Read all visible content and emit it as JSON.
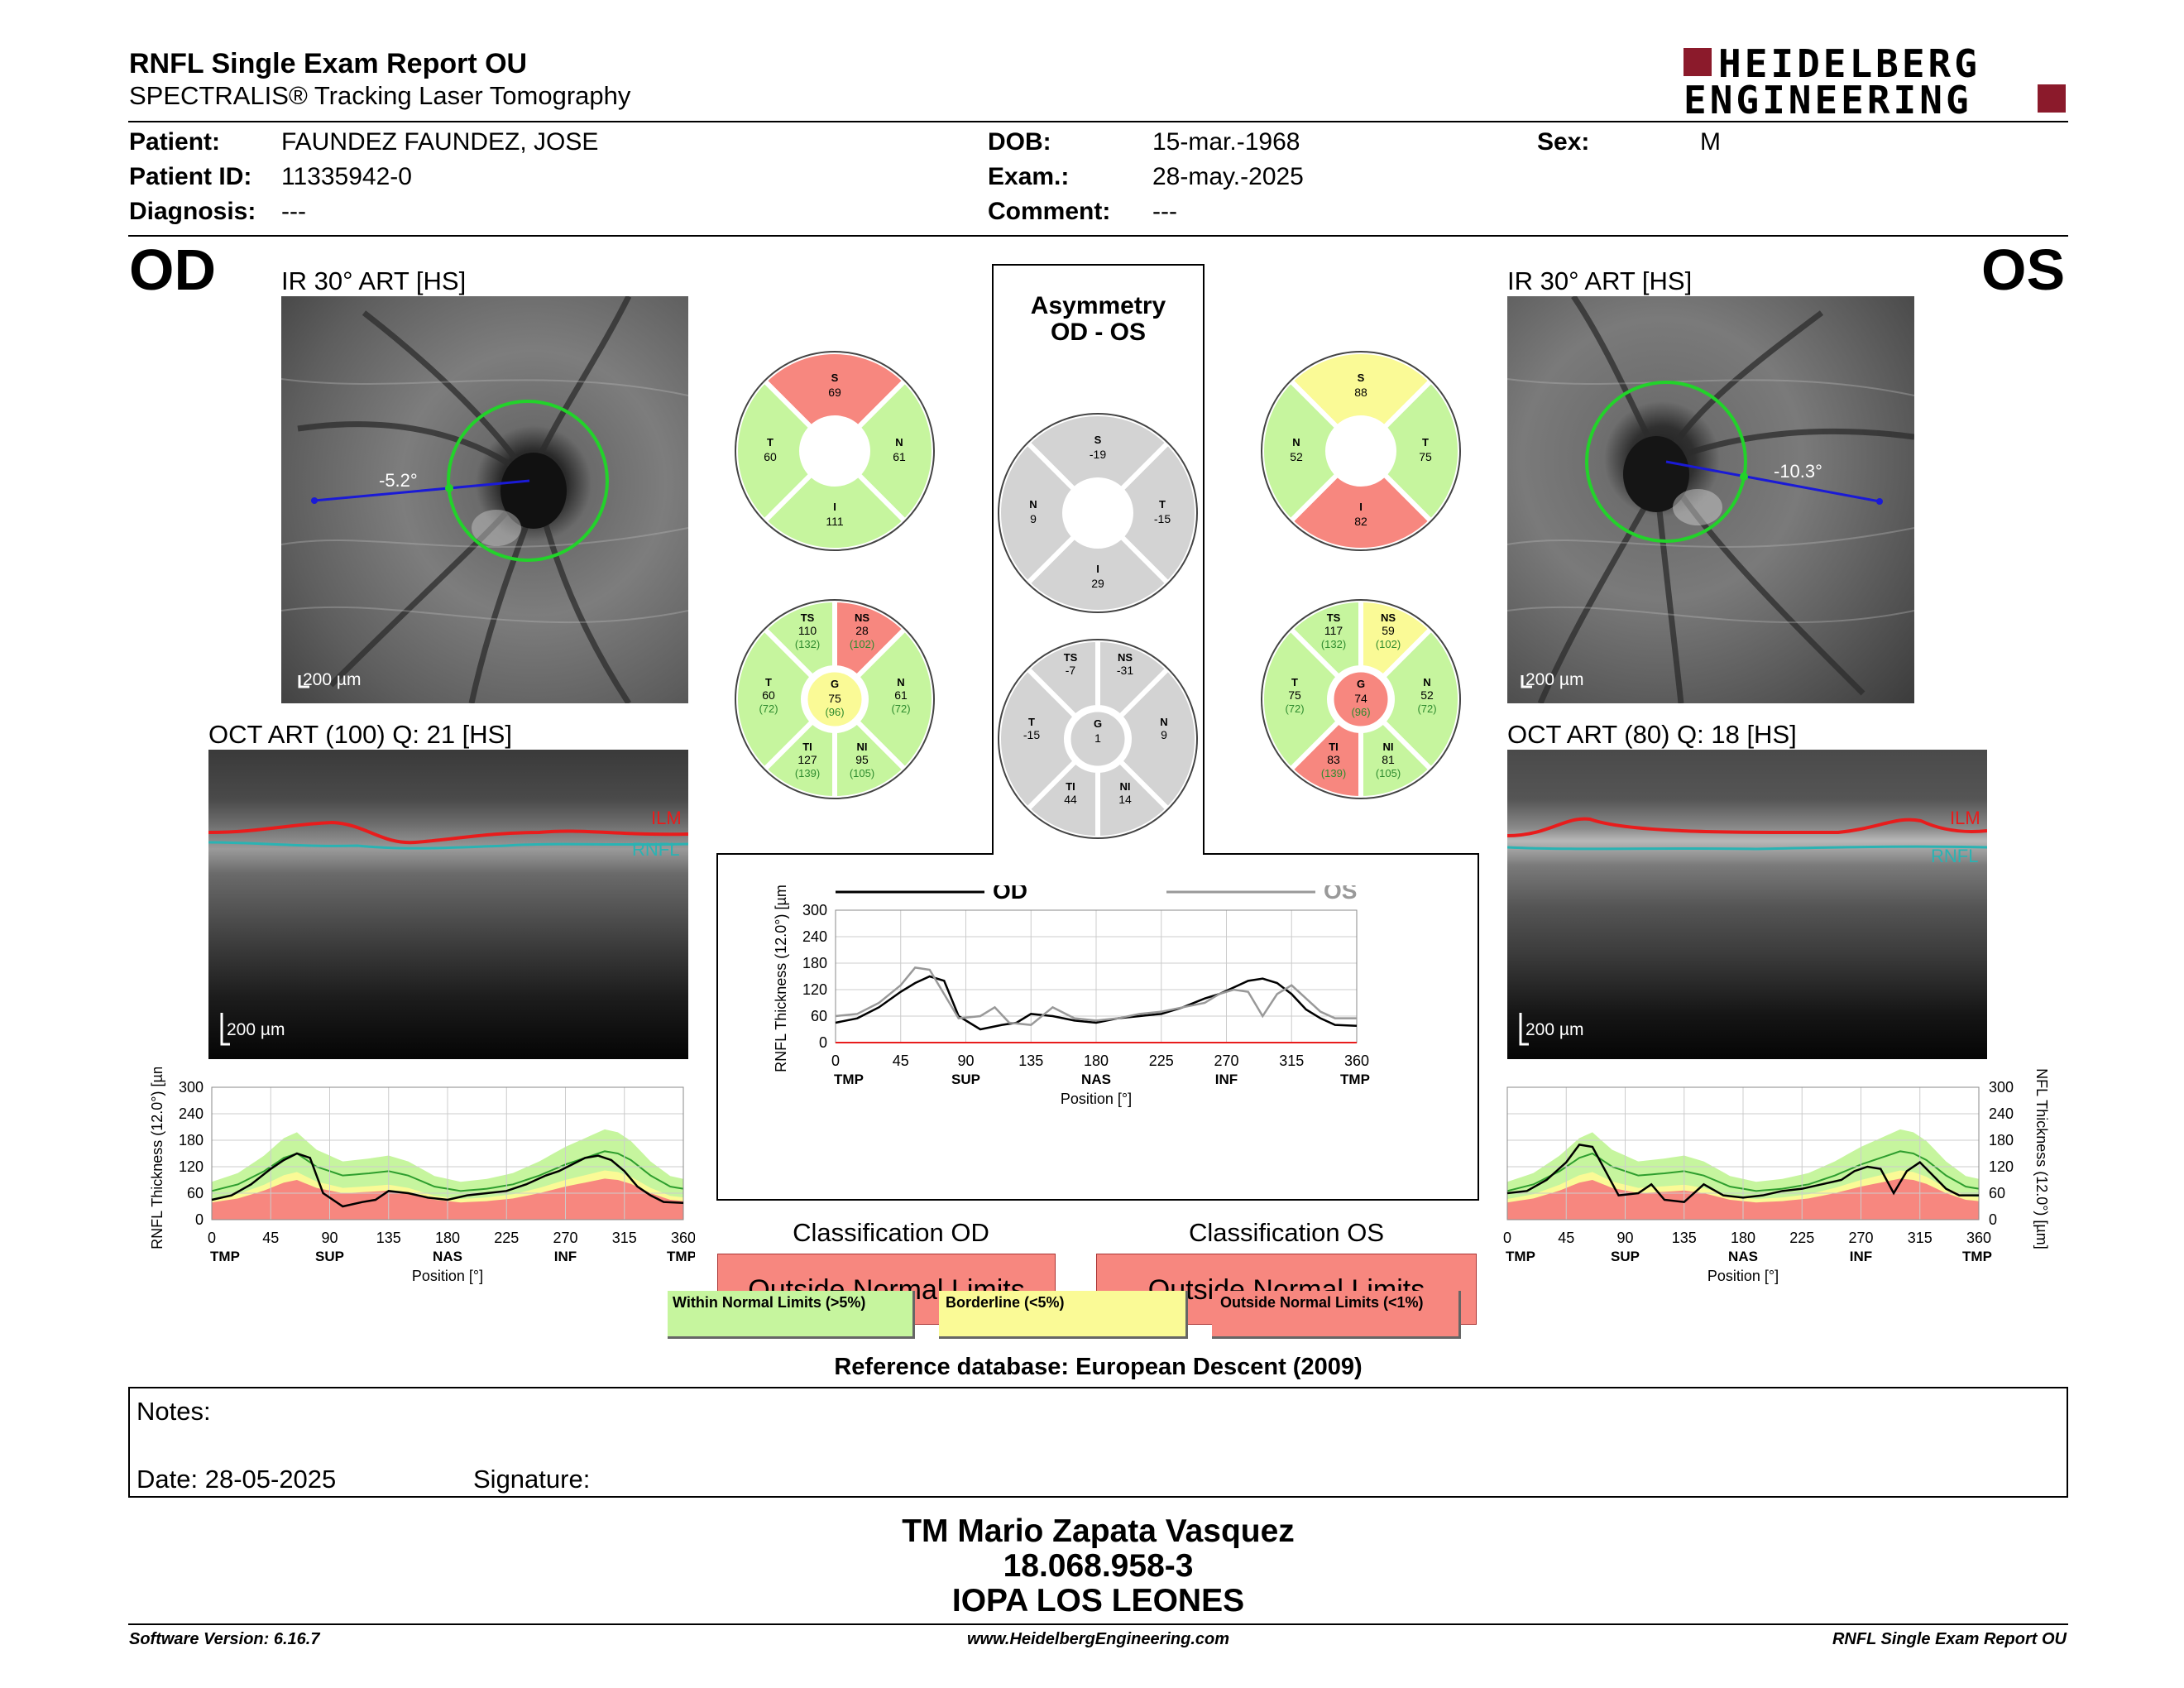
{
  "header": {
    "title": "RNFL Single Exam Report OU",
    "subtitle": "SPECTRALIS® Tracking Laser Tomography",
    "brand_line1": "HEIDELBERG",
    "brand_line2": "ENGINEERING",
    "brand_color": "#8b1a2b"
  },
  "patient": {
    "patient_label": "Patient:",
    "patient_value": "FAUNDEZ FAUNDEZ, JOSE",
    "id_label": "Patient ID:",
    "id_value": "11335942-0",
    "diagnosis_label": "Diagnosis:",
    "diagnosis_value": "---",
    "dob_label": "DOB:",
    "dob_value": "15-mar.-1968",
    "exam_label": "Exam.:",
    "exam_value": "28-may.-2025",
    "comment_label": "Comment:",
    "comment_value": "---",
    "sex_label": "Sex:",
    "sex_value": "M"
  },
  "od": {
    "eye": "OD",
    "ir_label": "IR 30° ART [HS]",
    "angle": "-5.2°",
    "ir_scale": "200 µm",
    "oct_label": "OCT ART (100) Q: 21 [HS]",
    "oct_scale": "200 µm",
    "ilm": "ILM",
    "rnfl": "RNFL",
    "classification_title": "Classification OD",
    "classification": "Outside Normal Limits"
  },
  "os": {
    "eye": "OS",
    "ir_label": "IR 30° ART [HS]",
    "angle": "-10.3°",
    "ir_scale": "200 µm",
    "oct_label": "OCT ART (80) Q: 18 [HS]",
    "oct_scale": "200 µm",
    "ilm": "ILM",
    "rnfl": "RNFL",
    "classification_title": "Classification OS",
    "classification": "Outside Normal Limits"
  },
  "asymmetry": {
    "title1": "Asymmetry",
    "title2": "OD - OS"
  },
  "colors": {
    "green": "#c6f59e",
    "yellow": "#fafa96",
    "red": "#f7877f",
    "grey": "#d3d3d3"
  },
  "sector_charts": [
    {
      "id": "od-4",
      "sectors": [
        {
          "label": "S",
          "value": "69",
          "color": "red"
        },
        {
          "label": "N",
          "value": "61",
          "color": "green"
        },
        {
          "label": "I",
          "value": "111",
          "color": "green"
        },
        {
          "label": "T",
          "value": "60",
          "color": "green"
        }
      ]
    },
    {
      "id": "os-4",
      "sectors": [
        {
          "label": "S",
          "value": "88",
          "color": "yellow"
        },
        {
          "label": "T",
          "value": "75",
          "color": "green"
        },
        {
          "label": "I",
          "value": "82",
          "color": "red"
        },
        {
          "label": "N",
          "value": "52",
          "color": "green"
        }
      ]
    },
    {
      "id": "as-4",
      "sectors": [
        {
          "label": "S",
          "value": "-19",
          "color": "grey"
        },
        {
          "label": "T",
          "value": "-15",
          "color": "grey"
        },
        {
          "label": "I",
          "value": "29",
          "color": "grey"
        },
        {
          "label": "N",
          "value": "9",
          "color": "grey"
        }
      ]
    }
  ],
  "sector6_charts": [
    {
      "id": "od-6",
      "ts": {
        "l": "TS",
        "v": "110",
        "r": "(132)",
        "c": "green"
      },
      "ns": {
        "l": "NS",
        "v": "28",
        "r": "(102)",
        "c": "red"
      },
      "n": {
        "l": "N",
        "v": "61",
        "r": "(72)",
        "c": "green"
      },
      "ni": {
        "l": "NI",
        "v": "95",
        "r": "(105)",
        "c": "green"
      },
      "ti": {
        "l": "TI",
        "v": "127",
        "r": "(139)",
        "c": "green"
      },
      "t": {
        "l": "T",
        "v": "60",
        "r": "(72)",
        "c": "green"
      },
      "g": {
        "l": "G",
        "v": "75",
        "r": "(96)",
        "c": "yellow"
      }
    },
    {
      "id": "os-6",
      "ts": {
        "l": "TS",
        "v": "117",
        "r": "(132)",
        "c": "green"
      },
      "ns": {
        "l": "NS",
        "v": "59",
        "r": "(102)",
        "c": "yellow"
      },
      "n": {
        "l": "N",
        "v": "52",
        "r": "(72)",
        "c": "green"
      },
      "ni": {
        "l": "NI",
        "v": "81",
        "r": "(105)",
        "c": "green"
      },
      "ti": {
        "l": "TI",
        "v": "83",
        "r": "(139)",
        "c": "red"
      },
      "t": {
        "l": "T",
        "v": "75",
        "r": "(72)",
        "c": "green"
      },
      "g": {
        "l": "G",
        "v": "74",
        "r": "(96)",
        "c": "red"
      }
    },
    {
      "id": "as-6",
      "ts": {
        "l": "TS",
        "v": "-7",
        "r": "",
        "c": "grey"
      },
      "ns": {
        "l": "NS",
        "v": "-31",
        "r": "",
        "c": "grey"
      },
      "n": {
        "l": "N",
        "v": "9",
        "r": "",
        "c": "grey"
      },
      "ni": {
        "l": "NI",
        "v": "14",
        "r": "",
        "c": "grey"
      },
      "ti": {
        "l": "TI",
        "v": "44",
        "r": "",
        "c": "grey"
      },
      "t": {
        "l": "T",
        "v": "-15",
        "r": "",
        "c": "grey"
      },
      "g": {
        "l": "G",
        "v": "1",
        "r": "",
        "c": "grey"
      }
    }
  ],
  "chart_data": [
    {
      "type": "line",
      "id": "od-profile",
      "ylabel": "RNFL Thickness (12.0°) [µm]",
      "xlabel": "Position [°]",
      "xlim": [
        0,
        360
      ],
      "ylim": [
        0,
        300
      ],
      "xticks": [
        0,
        45,
        90,
        135,
        180,
        225,
        270,
        315,
        360
      ],
      "yticks": [
        0,
        60,
        120,
        180,
        240,
        300
      ],
      "region_labels": [
        {
          "x": 0,
          "t": "TMP"
        },
        {
          "x": 90,
          "t": "SUP"
        },
        {
          "x": 180,
          "t": "NAS"
        },
        {
          "x": 270,
          "t": "INF"
        },
        {
          "x": 360,
          "t": "TMP"
        }
      ],
      "series": [
        {
          "x": [
            0,
            15,
            30,
            45,
            55,
            65,
            75,
            85,
            100,
            115,
            125,
            135,
            150,
            165,
            180,
            195,
            210,
            225,
            240,
            255,
            265,
            275,
            285,
            295,
            305,
            315,
            325,
            335,
            345,
            360
          ],
          "values": [
            45,
            55,
            80,
            115,
            135,
            150,
            140,
            60,
            30,
            40,
            45,
            65,
            60,
            50,
            45,
            55,
            60,
            65,
            80,
            100,
            110,
            125,
            140,
            145,
            135,
            110,
            75,
            55,
            40,
            38
          ]
        }
      ],
      "normal_mean": {
        "x": [
          0,
          20,
          40,
          55,
          65,
          80,
          100,
          120,
          135,
          150,
          170,
          190,
          210,
          230,
          250,
          270,
          290,
          300,
          310,
          320,
          335,
          350,
          360
        ],
        "values": [
          65,
          80,
          110,
          140,
          150,
          120,
          100,
          105,
          110,
          100,
          75,
          65,
          70,
          80,
          100,
          125,
          145,
          155,
          150,
          135,
          100,
          75,
          70
        ]
      }
    },
    {
      "type": "line",
      "id": "asym-profile",
      "ylabel": "RNFL Thickness (12.0°) [µm]",
      "xlabel": "Position [°]",
      "xlim": [
        0,
        360
      ],
      "ylim": [
        0,
        300
      ],
      "xticks": [
        0,
        45,
        90,
        135,
        180,
        225,
        270,
        315,
        360
      ],
      "yticks": [
        0,
        60,
        120,
        180,
        240,
        300
      ],
      "region_labels": [
        {
          "x": 0,
          "t": "TMP"
        },
        {
          "x": 90,
          "t": "SUP"
        },
        {
          "x": 180,
          "t": "NAS"
        },
        {
          "x": 270,
          "t": "INF"
        },
        {
          "x": 360,
          "t": "TMP"
        }
      ],
      "legend": [
        {
          "name": "OD",
          "color": "#000000"
        },
        {
          "name": "OS",
          "color": "#999999"
        }
      ],
      "series": [
        {
          "name": "OD",
          "color": "#000000",
          "x": [
            0,
            15,
            30,
            45,
            55,
            65,
            75,
            85,
            100,
            115,
            125,
            135,
            150,
            165,
            180,
            195,
            210,
            225,
            240,
            255,
            265,
            275,
            285,
            295,
            305,
            315,
            325,
            335,
            345,
            360
          ],
          "values": [
            45,
            55,
            80,
            115,
            135,
            150,
            140,
            60,
            30,
            40,
            45,
            65,
            60,
            50,
            45,
            55,
            60,
            65,
            80,
            100,
            110,
            125,
            140,
            145,
            135,
            110,
            75,
            55,
            40,
            38
          ]
        },
        {
          "name": "OS",
          "color": "#999999",
          "x": [
            0,
            15,
            30,
            45,
            55,
            65,
            75,
            85,
            100,
            110,
            120,
            135,
            150,
            165,
            180,
            195,
            210,
            225,
            240,
            255,
            265,
            275,
            285,
            295,
            305,
            315,
            325,
            335,
            345,
            360
          ],
          "values": [
            60,
            65,
            90,
            130,
            170,
            165,
            110,
            55,
            60,
            80,
            45,
            40,
            80,
            55,
            50,
            55,
            65,
            70,
            80,
            90,
            110,
            120,
            115,
            60,
            110,
            130,
            100,
            70,
            55,
            55
          ]
        }
      ]
    },
    {
      "type": "line",
      "id": "os-profile",
      "ylabel": "RNFL Thickness (12.0°) [µm]",
      "xlabel": "Position [°]",
      "xlim": [
        0,
        360
      ],
      "ylim": [
        0,
        300
      ],
      "xticks": [
        0,
        45,
        90,
        135,
        180,
        225,
        270,
        315,
        360
      ],
      "yticks": [
        0,
        60,
        120,
        180,
        240,
        300
      ],
      "region_labels": [
        {
          "x": 0,
          "t": "TMP"
        },
        {
          "x": 90,
          "t": "SUP"
        },
        {
          "x": 180,
          "t": "NAS"
        },
        {
          "x": 270,
          "t": "INF"
        },
        {
          "x": 360,
          "t": "TMP"
        }
      ],
      "series": [
        {
          "x": [
            0,
            15,
            30,
            45,
            55,
            65,
            75,
            85,
            100,
            110,
            120,
            135,
            150,
            165,
            180,
            195,
            210,
            225,
            240,
            255,
            265,
            275,
            285,
            295,
            305,
            315,
            325,
            335,
            345,
            360
          ],
          "values": [
            60,
            65,
            90,
            130,
            170,
            165,
            110,
            55,
            60,
            80,
            45,
            40,
            80,
            55,
            50,
            55,
            65,
            70,
            80,
            90,
            110,
            120,
            115,
            60,
            110,
            130,
            100,
            70,
            55,
            55
          ]
        }
      ],
      "normal_mean": {
        "x": [
          0,
          20,
          40,
          55,
          65,
          80,
          100,
          120,
          135,
          150,
          170,
          190,
          210,
          230,
          250,
          270,
          290,
          300,
          310,
          320,
          335,
          350,
          360
        ],
        "values": [
          65,
          80,
          110,
          140,
          150,
          120,
          100,
          105,
          110,
          100,
          75,
          65,
          70,
          80,
          100,
          125,
          145,
          155,
          150,
          135,
          100,
          75,
          70
        ]
      }
    }
  ],
  "legend_bar": {
    "within": "Within Normal Limits (>5%)",
    "borderline": "Borderline (<5%)",
    "outside": "Outside Normal Limits (<1%)"
  },
  "reference": "Reference database: European Descent (2009)",
  "notes": {
    "notes_label": "Notes:",
    "date_label": "Date: 28-05-2025",
    "signature_label": "Signature:"
  },
  "signatory": {
    "line1": "TM Mario Zapata Vasquez",
    "line2": "18.068.958-3",
    "line3": "IOPA LOS LEONES"
  },
  "footer": {
    "left": "Software Version: 6.16.7",
    "center": "www.HeidelbergEngineering.com",
    "right": "RNFL Single Exam Report OU"
  }
}
